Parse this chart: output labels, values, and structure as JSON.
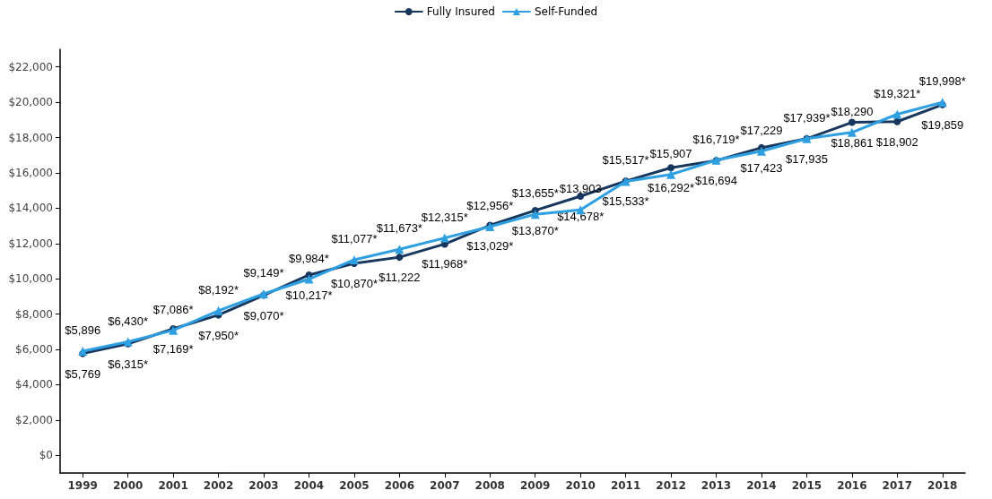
{
  "chart_data": {
    "type": "line",
    "categories": [
      "1999",
      "2000",
      "2001",
      "2002",
      "2003",
      "2004",
      "2005",
      "2006",
      "2007",
      "2008",
      "2009",
      "2010",
      "2011",
      "2012",
      "2013",
      "2014",
      "2015",
      "2016",
      "2017",
      "2018"
    ],
    "series": [
      {
        "name": "Fully Insured",
        "color": "#17375e",
        "marker": "circle",
        "values": [
          5769,
          6315,
          7169,
          7950,
          9070,
          10217,
          10870,
          11222,
          11968,
          13029,
          13870,
          14678,
          15533,
          16292,
          16694,
          17423,
          17935,
          18861,
          18902,
          19859
        ],
        "value_labels": [
          "$5,769",
          "$6,315*",
          "$7,169*",
          "$7,950*",
          "$9,070*",
          "$10,217*",
          "$10,870*",
          "$11,222",
          "$11,968*",
          "$13,029*",
          "$13,870*",
          "$14,678*",
          "$15,533*",
          "$16,292*",
          "$16,694",
          "$17,423",
          "$17,935",
          "$18,861",
          "$18,902",
          "$19,859"
        ]
      },
      {
        "name": "Self-Funded",
        "color": "#2e9fe0",
        "marker": "triangle",
        "values": [
          5896,
          6430,
          7086,
          8192,
          9149,
          9984,
          11077,
          11673,
          12315,
          12956,
          13655,
          13903,
          15517,
          15907,
          16719,
          17229,
          17939,
          18290,
          19321,
          19998
        ],
        "value_labels": [
          "$5,896",
          "$6,430*",
          "$7,086*",
          "$8,192*",
          "$9,149*",
          "$9,984*",
          "$11,077*",
          "$11,673*",
          "$12,315*",
          "$12,956*",
          "$13,655*",
          "$13,903",
          "$15,517*",
          "$15,907",
          "$16,719*",
          "$17,229",
          "$17,939*",
          "$18,290",
          "$19,321*",
          "$19,998*"
        ]
      }
    ],
    "ylim": [
      -1000,
      23000
    ],
    "yticks": [
      {
        "value": 0,
        "label": "$0"
      },
      {
        "value": 2000,
        "label": "$2,000"
      },
      {
        "value": 4000,
        "label": "$4,000"
      },
      {
        "value": 6000,
        "label": "$6,000"
      },
      {
        "value": 8000,
        "label": "$8,000"
      },
      {
        "value": 10000,
        "label": "$10,000"
      },
      {
        "value": 12000,
        "label": "$12,000"
      },
      {
        "value": 14000,
        "label": "$14,000"
      },
      {
        "value": 16000,
        "label": "$16,000"
      },
      {
        "value": 18000,
        "label": "$18,000"
      },
      {
        "value": 20000,
        "label": "$20,000"
      },
      {
        "value": 22000,
        "label": "$22,000"
      }
    ],
    "grid": false,
    "legend": "top",
    "line_style": "solid"
  }
}
